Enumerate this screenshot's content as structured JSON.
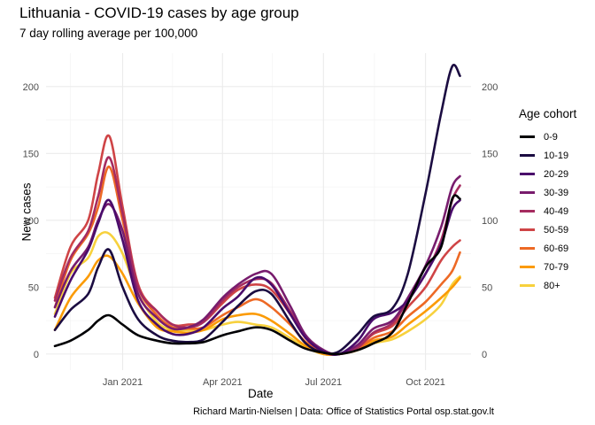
{
  "title": "Lithuania - COVID-19 cases by age group",
  "subtitle": "7 day rolling average per 100,000",
  "caption": "Richard Martin-Nielsen | Data: Office of Statistics Portal osp.stat.gov.lt",
  "chart_data": {
    "type": "line",
    "xlabel": "Date",
    "ylabel": "New cases",
    "x_range": [
      "2020-10-24",
      "2021-11-11"
    ],
    "ylim": [
      -12,
      225
    ],
    "y_ticks": [
      0,
      50,
      100,
      150,
      200
    ],
    "x_ticks": [
      {
        "date": "2021-01-01",
        "label": "Jan 2021"
      },
      {
        "date": "2021-04-01",
        "label": "Apr 2021"
      },
      {
        "date": "2021-07-01",
        "label": "Jul 2021"
      },
      {
        "date": "2021-10-01",
        "label": "Oct 2021"
      }
    ],
    "grid": true,
    "legend_position": "right",
    "legend_title": "Age cohort",
    "dates": [
      "2020-11-01",
      "2020-11-15",
      "2020-12-01",
      "2020-12-10",
      "2020-12-20",
      "2021-01-01",
      "2021-01-15",
      "2021-02-01",
      "2021-02-15",
      "2021-03-01",
      "2021-03-15",
      "2021-04-01",
      "2021-04-15",
      "2021-05-01",
      "2021-05-15",
      "2021-06-01",
      "2021-06-15",
      "2021-07-01",
      "2021-07-15",
      "2021-08-01",
      "2021-08-15",
      "2021-09-01",
      "2021-09-15",
      "2021-10-01",
      "2021-10-15",
      "2021-10-25",
      "2021-11-01"
    ],
    "series": [
      {
        "name": "0-9",
        "color": "#000004",
        "values": [
          6,
          10,
          18,
          25,
          29,
          22,
          14,
          10,
          8,
          8,
          9,
          14,
          17,
          20,
          18,
          10,
          4,
          1,
          0,
          3,
          8,
          16,
          38,
          65,
          80,
          116,
          116
        ]
      },
      {
        "name": "10-19",
        "color": "#1b0c41",
        "values": [
          18,
          33,
          45,
          65,
          78,
          50,
          26,
          14,
          10,
          9,
          11,
          24,
          36,
          47,
          45,
          24,
          8,
          1,
          2,
          15,
          28,
          34,
          60,
          120,
          180,
          215,
          208
        ]
      },
      {
        "name": "20-29",
        "color": "#4a0c6b",
        "values": [
          28,
          55,
          78,
          98,
          115,
          85,
          40,
          22,
          15,
          15,
          20,
          34,
          43,
          57,
          52,
          30,
          12,
          2,
          0,
          10,
          26,
          31,
          40,
          60,
          82,
          108,
          115
        ]
      },
      {
        "name": "30-39",
        "color": "#781c6d",
        "values": [
          35,
          62,
          80,
          100,
          112,
          92,
          45,
          27,
          19,
          20,
          26,
          42,
          52,
          60,
          60,
          36,
          14,
          3,
          0,
          7,
          19,
          25,
          42,
          66,
          95,
          125,
          133
        ]
      },
      {
        "name": "40-49",
        "color": "#a52c60",
        "values": [
          40,
          72,
          92,
          118,
          147,
          105,
          50,
          32,
          22,
          20,
          24,
          40,
          50,
          56,
          53,
          32,
          12,
          2,
          0,
          5,
          16,
          23,
          40,
          60,
          85,
          115,
          126
        ]
      },
      {
        "name": "50-59",
        "color": "#cf4446",
        "values": [
          42,
          80,
          100,
          135,
          163,
          110,
          52,
          32,
          22,
          22,
          24,
          38,
          48,
          52,
          48,
          30,
          12,
          2,
          0,
          5,
          15,
          21,
          35,
          50,
          70,
          80,
          85
        ]
      },
      {
        "name": "60-69",
        "color": "#ed6925",
        "values": [
          35,
          70,
          90,
          110,
          140,
          100,
          50,
          29,
          20,
          19,
          20,
          29,
          35,
          41,
          35,
          22,
          9,
          1,
          0,
          4,
          12,
          17,
          28,
          39,
          52,
          62,
          76
        ]
      },
      {
        "name": "70-79",
        "color": "#fb9b06",
        "values": [
          18,
          42,
          58,
          70,
          73,
          60,
          38,
          20,
          17,
          16,
          18,
          26,
          29,
          30,
          25,
          15,
          6,
          0,
          0,
          3,
          10,
          13,
          22,
          32,
          42,
          50,
          57
        ]
      },
      {
        "name": "80+",
        "color": "#f7d13d",
        "values": [
          30,
          60,
          72,
          88,
          90,
          75,
          45,
          24,
          18,
          18,
          18,
          22,
          24,
          22,
          20,
          12,
          5,
          0,
          0,
          3,
          8,
          11,
          17,
          26,
          37,
          52,
          58
        ]
      }
    ]
  }
}
